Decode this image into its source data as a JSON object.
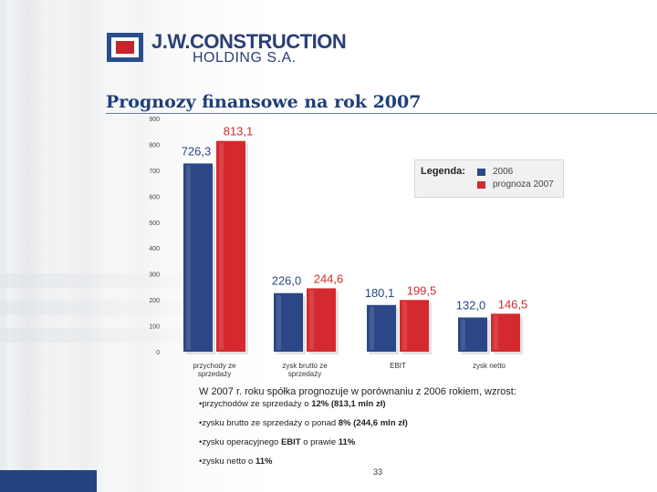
{
  "logo": {
    "line1": "J.W.CONSTRUCTION",
    "line2": "HOLDING S.A."
  },
  "title": "Prognozy finansowe na rok 2007",
  "legend": {
    "title": "Legenda:",
    "items": [
      {
        "label": "2006",
        "color": "#2b4787"
      },
      {
        "label": "prognoza 2007",
        "color": "#d42a2f"
      }
    ]
  },
  "chart_data": {
    "type": "bar",
    "title": "Prognozy finansowe na rok 2007",
    "categories": [
      "przychody ze sprzedaży",
      "zysk brutto ze sprzedaży",
      "EBIT",
      "zysk netto"
    ],
    "series": [
      {
        "name": "2006",
        "values": [
          726.3,
          226.0,
          180.1,
          132.0
        ],
        "labels": [
          "726,3",
          "226,0",
          "180,1",
          "132,0"
        ]
      },
      {
        "name": "prognoza 2007",
        "values": [
          813.1,
          244.6,
          199.5,
          146.5
        ],
        "labels": [
          "813,1",
          "244,6",
          "199,5",
          "146,5"
        ]
      }
    ],
    "yticks": [
      "0",
      "100",
      "200",
      "300",
      "400",
      "500",
      "600",
      "700",
      "800",
      "900"
    ],
    "xlabel": "",
    "ylabel": "",
    "ylim": [
      0,
      900
    ],
    "grid": false,
    "legend_position": "top-right"
  },
  "notes": {
    "intro": "W 2007 r. roku spółka prognozuje w porównaniu z 2006 rokiem, wzrost:",
    "items": [
      {
        "text": "•przychodów ze sprzedaży o ",
        "bold": "12% (813,1 mln zł)",
        "after": ""
      },
      {
        "text": "•zysku brutto ze sprzedaży o ponad ",
        "bold": "8% (244,6 mln zł)",
        "after": ""
      },
      {
        "text": "•zysku operacyjnego ",
        "bold": "EBIT",
        "after": " o prawie ",
        "bold2": "11%"
      },
      {
        "text": "•zysku netto o ",
        "bold": "11%",
        "after": ""
      }
    ]
  },
  "page_number": "33"
}
